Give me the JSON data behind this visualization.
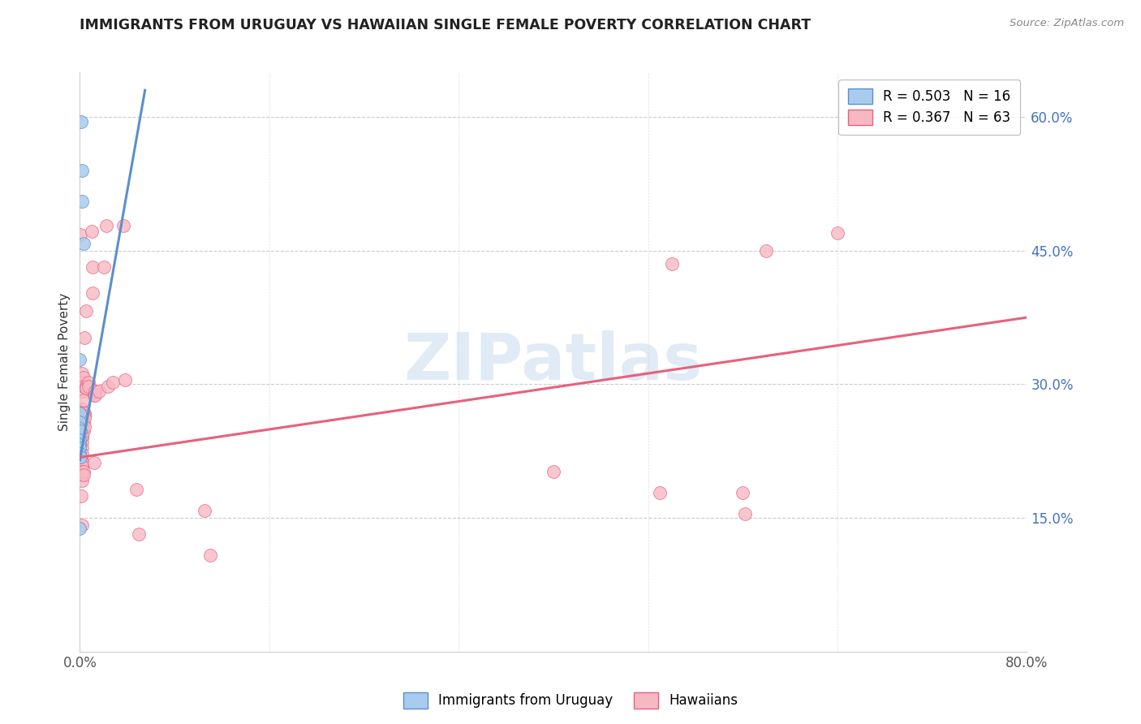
{
  "title": "IMMIGRANTS FROM URUGUAY VS HAWAIIAN SINGLE FEMALE POVERTY CORRELATION CHART",
  "source": "Source: ZipAtlas.com",
  "ylabel": "Single Female Poverty",
  "xlim": [
    0,
    0.8
  ],
  "ylim": [
    0,
    0.65
  ],
  "watermark": "ZIPatlas",
  "legend_labels": [
    "Immigrants from Uruguay",
    "Hawaiians"
  ],
  "blue_color": "#A8CCEE",
  "pink_color": "#F7B8C4",
  "blue_line_color": "#5B8FCC",
  "pink_line_color": "#E8607A",
  "blue_scatter": [
    [
      0.001,
      0.595
    ],
    [
      0.0015,
      0.54
    ],
    [
      0.002,
      0.505
    ],
    [
      0.003,
      0.458
    ],
    [
      0.0,
      0.328
    ],
    [
      0.0,
      0.268
    ],
    [
      0.0,
      0.258
    ],
    [
      0.0,
      0.25
    ],
    [
      0.0005,
      0.248
    ],
    [
      0.0,
      0.238
    ],
    [
      0.0,
      0.232
    ],
    [
      0.0,
      0.228
    ],
    [
      0.0,
      0.222
    ],
    [
      0.0,
      0.218
    ],
    [
      0.0005,
      0.218
    ],
    [
      0.0,
      0.138
    ]
  ],
  "pink_scatter": [
    [
      0.0005,
      0.468
    ],
    [
      0.001,
      0.272
    ],
    [
      0.001,
      0.268
    ],
    [
      0.001,
      0.262
    ],
    [
      0.001,
      0.256
    ],
    [
      0.001,
      0.252
    ],
    [
      0.001,
      0.175
    ],
    [
      0.0015,
      0.262
    ],
    [
      0.0015,
      0.256
    ],
    [
      0.0015,
      0.25
    ],
    [
      0.0015,
      0.245
    ],
    [
      0.0015,
      0.24
    ],
    [
      0.0015,
      0.235
    ],
    [
      0.0015,
      0.228
    ],
    [
      0.0015,
      0.222
    ],
    [
      0.0015,
      0.215
    ],
    [
      0.0015,
      0.208
    ],
    [
      0.0015,
      0.142
    ],
    [
      0.002,
      0.312
    ],
    [
      0.002,
      0.302
    ],
    [
      0.002,
      0.292
    ],
    [
      0.002,
      0.252
    ],
    [
      0.002,
      0.248
    ],
    [
      0.002,
      0.242
    ],
    [
      0.002,
      0.212
    ],
    [
      0.002,
      0.208
    ],
    [
      0.002,
      0.202
    ],
    [
      0.002,
      0.198
    ],
    [
      0.002,
      0.192
    ],
    [
      0.003,
      0.308
    ],
    [
      0.003,
      0.282
    ],
    [
      0.003,
      0.298
    ],
    [
      0.003,
      0.268
    ],
    [
      0.003,
      0.258
    ],
    [
      0.003,
      0.248
    ],
    [
      0.003,
      0.202
    ],
    [
      0.003,
      0.198
    ],
    [
      0.004,
      0.352
    ],
    [
      0.004,
      0.268
    ],
    [
      0.004,
      0.265
    ],
    [
      0.004,
      0.262
    ],
    [
      0.004,
      0.252
    ],
    [
      0.005,
      0.382
    ],
    [
      0.005,
      0.298
    ],
    [
      0.005,
      0.296
    ],
    [
      0.007,
      0.302
    ],
    [
      0.007,
      0.298
    ],
    [
      0.01,
      0.472
    ],
    [
      0.011,
      0.432
    ],
    [
      0.011,
      0.402
    ],
    [
      0.012,
      0.288
    ],
    [
      0.012,
      0.212
    ],
    [
      0.013,
      0.292
    ],
    [
      0.013,
      0.288
    ],
    [
      0.016,
      0.292
    ],
    [
      0.02,
      0.432
    ],
    [
      0.022,
      0.478
    ],
    [
      0.024,
      0.298
    ],
    [
      0.028,
      0.302
    ],
    [
      0.037,
      0.478
    ],
    [
      0.038,
      0.305
    ],
    [
      0.048,
      0.182
    ],
    [
      0.05,
      0.132
    ],
    [
      0.4,
      0.202
    ],
    [
      0.49,
      0.178
    ],
    [
      0.5,
      0.435
    ],
    [
      0.56,
      0.178
    ],
    [
      0.562,
      0.155
    ],
    [
      0.58,
      0.45
    ],
    [
      0.64,
      0.47
    ],
    [
      0.11,
      0.108
    ],
    [
      0.105,
      0.158
    ]
  ],
  "blue_line": {
    "x0": 0.0,
    "x1": 0.055,
    "y0": 0.215,
    "y1": 0.63
  },
  "pink_line": {
    "x0": 0.0,
    "x1": 0.8,
    "y0": 0.218,
    "y1": 0.375
  }
}
